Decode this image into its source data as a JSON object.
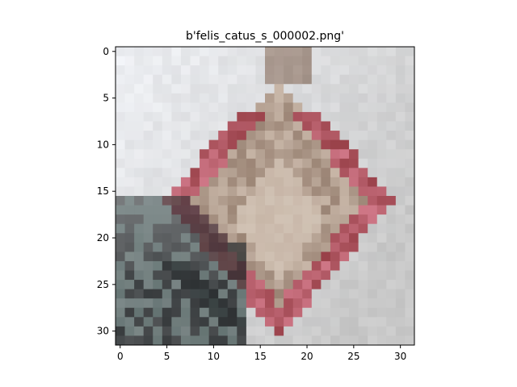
{
  "chart_data": {
    "type": "heatmap",
    "title": "b'felis_catus_s_000002.png'",
    "xlabel": "",
    "ylabel": "",
    "xlim": [
      -0.5,
      31.5
    ],
    "ylim": [
      31.5,
      -0.5
    ],
    "x_ticks": [
      0,
      5,
      10,
      15,
      20,
      25,
      30
    ],
    "y_ticks": [
      0,
      5,
      10,
      15,
      20,
      25,
      30
    ],
    "x_tick_labels": [
      "0",
      "5",
      "10",
      "15",
      "20",
      "25",
      "30"
    ],
    "y_tick_labels": [
      "0",
      "5",
      "10",
      "15",
      "20",
      "25",
      "30"
    ],
    "grid": false,
    "image_size": [
      32,
      32
    ],
    "image_content": "32x32 low-resolution RGB image of a cat with a pink/red collar against a pale grey-white background",
    "palette": {
      "background_light": "#eef0f4",
      "background_grey": "#c8c8c8",
      "collar_red": "#a04850",
      "collar_pink": "#c87080",
      "cat_brown": "#8a7060",
      "cat_light": "#d8cabc",
      "dark": "#1e2224",
      "teal_dark": "#3a4e4c"
    }
  }
}
